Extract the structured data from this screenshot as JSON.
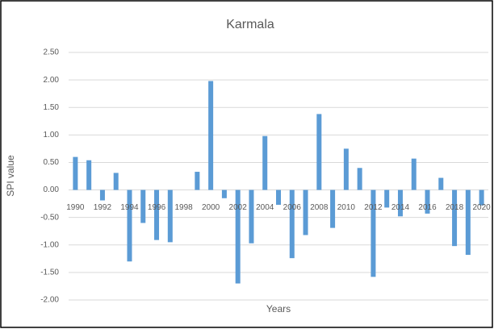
{
  "chart_data": {
    "type": "bar",
    "title": "Karmala",
    "x_label": "Years",
    "y_label": "SPI value",
    "categories": [
      "1990",
      null,
      "1992",
      null,
      "1994",
      null,
      "1996",
      null,
      "1998",
      null,
      "2000",
      null,
      "2002",
      null,
      "2004",
      null,
      "2006",
      null,
      "2008",
      null,
      "2010",
      null,
      "2012",
      null,
      "2014",
      null,
      "2016",
      null,
      "2018",
      null,
      "2020"
    ],
    "values": [
      0.6,
      0.54,
      -0.19,
      0.31,
      -1.3,
      -0.6,
      -0.91,
      -0.95,
      0,
      0.33,
      1.98,
      -0.15,
      -1.7,
      -0.97,
      0.98,
      -0.27,
      -1.24,
      -0.82,
      1.38,
      -0.69,
      0.75,
      0.4,
      -1.58,
      -0.32,
      -0.48,
      0.57,
      -0.43,
      0.22,
      -1.02,
      -1.18,
      -0.28
    ],
    "color": "#5b9bd5",
    "ylim": [
      -2,
      2.5
    ],
    "yticks": [
      {
        "value": -2,
        "label": "-2.00"
      },
      {
        "value": -1.5,
        "label": "-1.50"
      },
      {
        "value": -1,
        "label": "-1.00"
      },
      {
        "value": -0.5,
        "label": "-0.50"
      },
      {
        "value": 0,
        "label": "0.00"
      },
      {
        "value": 0.5,
        "label": "0.50"
      },
      {
        "value": 1,
        "label": "1.00"
      },
      {
        "value": 1.5,
        "label": "1.50"
      },
      {
        "value": 2,
        "label": "2.00"
      },
      {
        "value": 2.5,
        "label": "2.50"
      }
    ],
    "grid": true
  }
}
